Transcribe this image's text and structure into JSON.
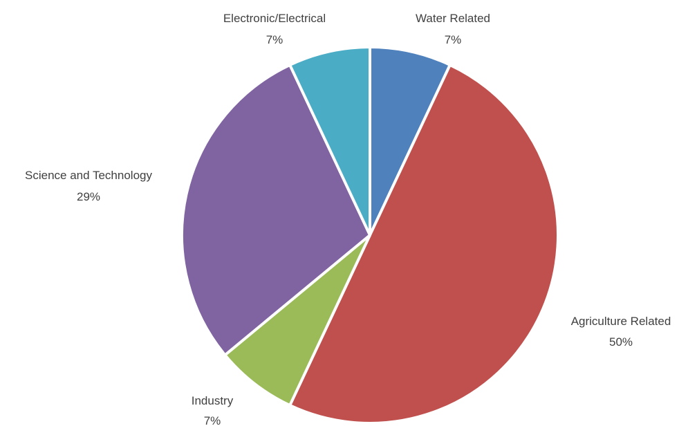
{
  "chart_data": {
    "type": "pie",
    "title": "",
    "slices": [
      {
        "name": "Water Related",
        "value": 7,
        "label_value": "7%",
        "color": "#4f81bd"
      },
      {
        "name": "Agriculture Related",
        "value": 50,
        "label_value": "50%",
        "color": "#c0504d"
      },
      {
        "name": "Industry",
        "value": 7,
        "label_value": "7%",
        "color": "#9bbb59"
      },
      {
        "name": "Science and Technology",
        "value": 29,
        "label_value": "29%",
        "color": "#8064a2"
      },
      {
        "name": "Electronic/Electrical",
        "value": 7,
        "label_value": "7%",
        "color": "#4bacc6"
      }
    ],
    "legend": "none",
    "start": "top",
    "direction": "clockwise"
  }
}
